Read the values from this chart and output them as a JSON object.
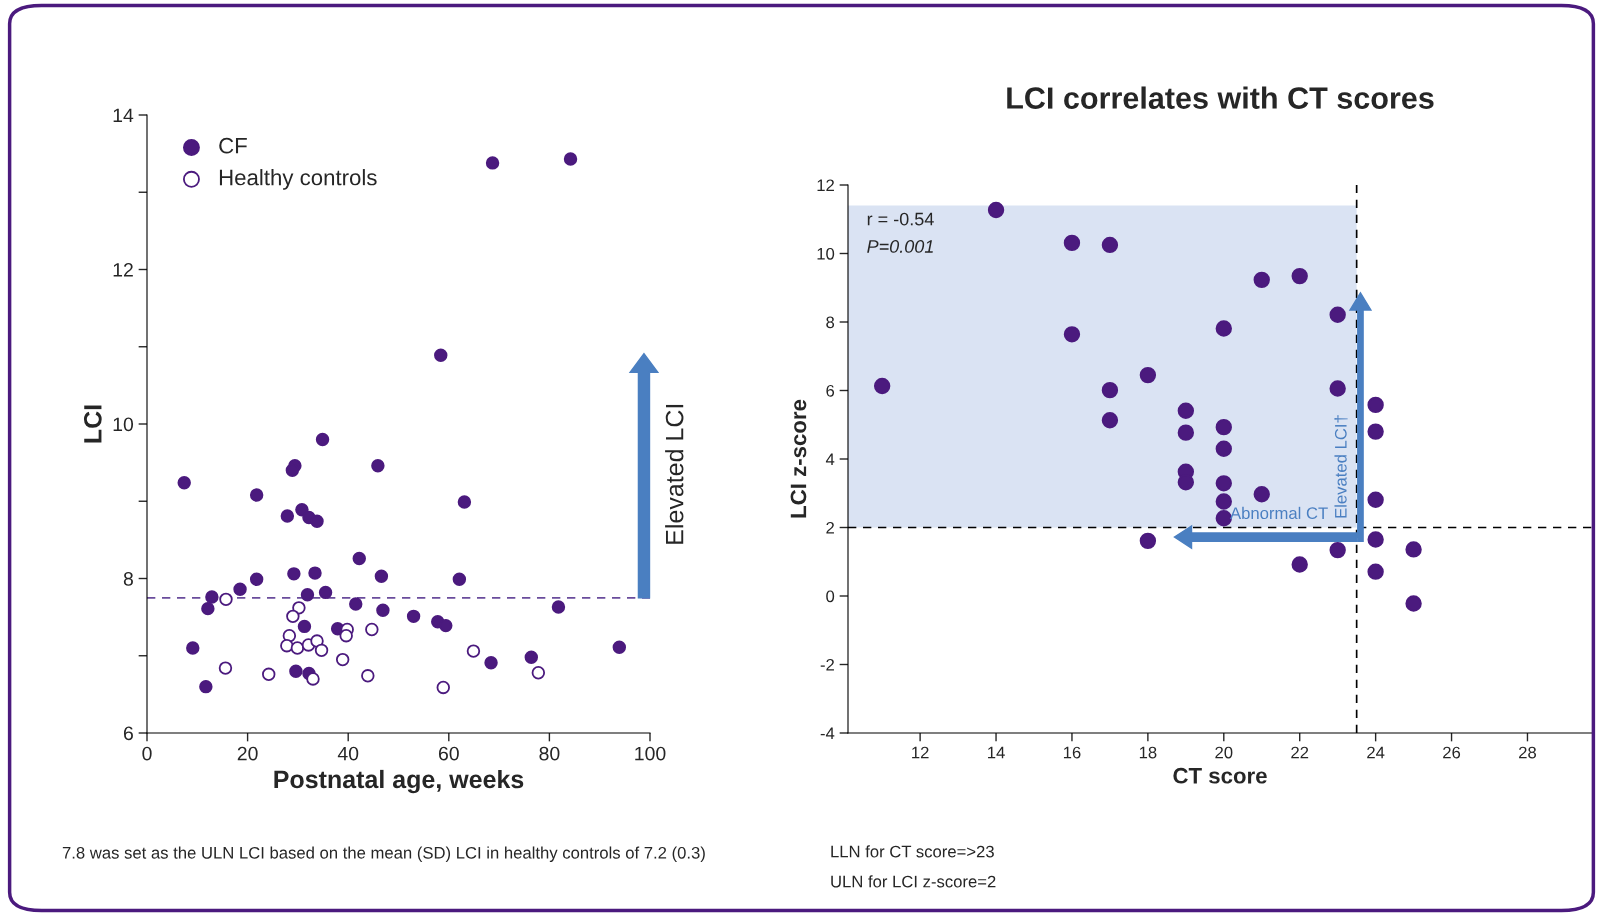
{
  "chart_data": [
    {
      "type": "scatter",
      "xlabel": "Postnatal age, weeks",
      "ylabel": "LCI",
      "xlim": [
        0,
        100
      ],
      "ylim": [
        6,
        14
      ],
      "xticks": [
        0,
        20,
        40,
        60,
        80,
        100
      ],
      "yticks": [
        6,
        {
          "value": 7,
          "label": null
        },
        8,
        {
          "value": 9,
          "label": null
        },
        10,
        {
          "value": 11,
          "label": null
        },
        12,
        {
          "value": 13,
          "label": null
        },
        14
      ],
      "grid": false,
      "legend": "top left",
      "series": [
        {
          "name": "CF",
          "color": "#4b1a7e",
          "marker": "circle",
          "x": [
            68.7,
            84.2,
            58.4,
            34.9,
            29.4,
            28.9,
            45.9,
            7.4,
            21.8,
            63.1,
            30.8,
            27.9,
            32.2,
            33.8,
            42.2,
            29.2,
            33.4,
            46.6,
            21.8,
            62.1,
            18.5,
            12.9,
            31.9,
            35.5,
            41.5,
            12.1,
            81.8,
            46.9,
            53.0,
            31.3,
            57.8,
            59.4,
            37.9,
            9.1,
            93.9,
            76.4,
            68.4,
            29.6,
            32.2,
            11.7
          ],
          "values": [
            13.38,
            13.43,
            10.89,
            9.8,
            9.46,
            9.4,
            9.46,
            9.24,
            9.08,
            8.99,
            8.89,
            8.81,
            8.79,
            8.74,
            8.26,
            8.06,
            8.07,
            8.03,
            7.99,
            7.99,
            7.86,
            7.76,
            7.79,
            7.82,
            7.67,
            7.61,
            7.63,
            7.59,
            7.51,
            7.38,
            7.44,
            7.39,
            7.35,
            7.1,
            7.11,
            6.98,
            6.91,
            6.8,
            6.77,
            6.6
          ]
        },
        {
          "name": "Healthy controls",
          "color": "#4b1a7e",
          "marker": "open circle",
          "x": [
            15.7,
            30.2,
            29.0,
            39.8,
            44.7,
            39.6,
            28.3,
            27.8,
            29.9,
            32.1,
            33.8,
            34.7,
            38.9,
            64.9,
            15.6,
            24.2,
            33.0,
            43.9,
            77.8,
            58.9
          ],
          "values": [
            7.73,
            7.62,
            7.51,
            7.34,
            7.34,
            7.26,
            7.26,
            7.13,
            7.1,
            7.14,
            7.19,
            7.07,
            6.95,
            7.06,
            6.84,
            6.76,
            6.7,
            6.74,
            6.78,
            6.59
          ]
        }
      ],
      "ref_lines": [
        {
          "axis": "y",
          "value": 7.75,
          "color": "#6a4c9c",
          "line_style": "dashed"
        }
      ],
      "annotations": [
        "Elevated LCI",
        "7.8 was set as the ULN LCI based on the mean (SD) LCI in healthy controls of 7.2 (0.3)"
      ]
    },
    {
      "type": "scatter",
      "title": "LCI correlates with CT scores",
      "xlabel": "CT score",
      "ylabel": "LCI z-score",
      "xlim": [
        10.1,
        29.7
      ],
      "ylim": [
        -4,
        12
      ],
      "xticks": [
        12,
        14,
        16,
        18,
        20,
        22,
        24,
        26,
        28
      ],
      "yticks": [
        -4,
        -2,
        0,
        2,
        4,
        6,
        8,
        10,
        12
      ],
      "grid": false,
      "series": [
        {
          "color": "#4b1a7e",
          "marker": "circle",
          "x": [
            11,
            14,
            16,
            16,
            17,
            17,
            17,
            18,
            18,
            19,
            19,
            19,
            19,
            20,
            20,
            20,
            20,
            20,
            20,
            21,
            21,
            22,
            22,
            23,
            23,
            23,
            24,
            24,
            24,
            24,
            24,
            25,
            25
          ],
          "values": [
            6.13,
            11.27,
            10.31,
            7.64,
            10.25,
            6.01,
            5.13,
            6.45,
            1.61,
            5.41,
            4.77,
            3.63,
            3.32,
            7.81,
            4.93,
            4.3,
            3.29,
            2.76,
            2.27,
            9.23,
            2.97,
            9.34,
            0.92,
            8.21,
            6.06,
            1.34,
            5.58,
            4.8,
            2.81,
            1.65,
            0.71,
            1.36,
            -0.22
          ]
        }
      ],
      "ref_lines": [
        {
          "axis": "x",
          "value": 23.5,
          "color": "#000000",
          "line_style": "dashed"
        },
        {
          "axis": "y",
          "value": 2,
          "color": "#000000",
          "line_style": "dashed"
        }
      ],
      "bands": [
        {
          "axis": "y",
          "from": 2,
          "to": 11.4,
          "color": "#dae3f3"
        }
      ],
      "annotations": [
        "r = -0.54",
        "P=0.001",
        "Abnormal CT",
        "Elevated LCI†",
        "LLN for CT score=>23",
        "ULN for LCI z-score=2"
      ]
    }
  ]
}
